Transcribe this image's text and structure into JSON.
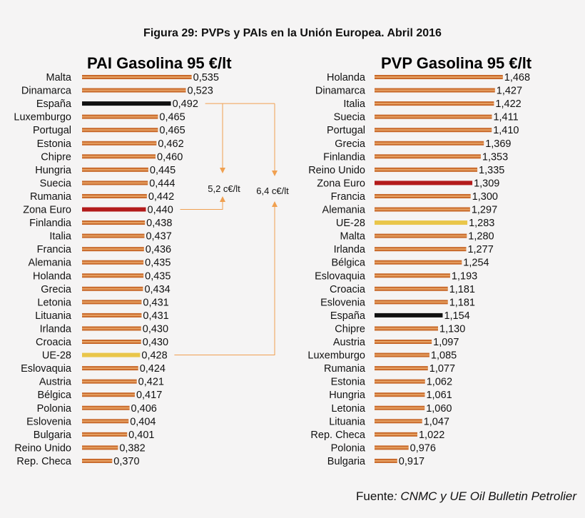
{
  "figure_title": "Figura 29: PVPs y PAIs en la Unión Europea. Abril 2016",
  "source_label": "Fuente",
  "source_text": ": CNMC y UE Oil Bulletin Petrolier",
  "colors": {
    "default_bar": "#c8692a",
    "default_bar_highlight": "#e7a264",
    "spain": "#111111",
    "eurozone": "#b31b1b",
    "eu28": "#e9c64a",
    "arrow": "#f0a050"
  },
  "annotations": [
    {
      "label": "5,2 c€/lt",
      "from": "España",
      "to": "Zona Euro",
      "chart": 0
    },
    {
      "label": "6,4 c€/lt",
      "from": "España",
      "to": "UE-28",
      "chart": 0
    }
  ],
  "chart_data": [
    {
      "type": "bar",
      "orientation": "horizontal",
      "title": "PAI Gasolina 95 €/lt",
      "categories": [
        "Malta",
        "Dinamarca",
        "España",
        "Luxemburgo",
        "Portugal",
        "Estonia",
        "Chipre",
        "Hungria",
        "Suecia",
        "Rumania",
        "Zona Euro",
        "Finlandia",
        "Italia",
        "Francia",
        "Alemania",
        "Holanda",
        "Grecia",
        "Letonia",
        "Lituania",
        "Irlanda",
        "Croacia",
        "UE-28",
        "Eslovaquia",
        "Austria",
        "Bélgica",
        "Polonia",
        "Eslovenia",
        "Bulgaria",
        "Reino Unido",
        "Rep. Checa"
      ],
      "values": [
        0.535,
        0.523,
        0.492,
        0.465,
        0.465,
        0.462,
        0.46,
        0.445,
        0.444,
        0.442,
        0.44,
        0.438,
        0.437,
        0.436,
        0.435,
        0.435,
        0.434,
        0.431,
        0.431,
        0.43,
        0.43,
        0.428,
        0.424,
        0.421,
        0.417,
        0.406,
        0.404,
        0.401,
        0.382,
        0.37
      ],
      "labels": [
        "0,535",
        "0,523",
        "0,492",
        "0,465",
        "0,465",
        "0,462",
        "0,460",
        "0,445",
        "0,444",
        "0,442",
        "0,440",
        "0,438",
        "0,437",
        "0,436",
        "0,435",
        "0,435",
        "0,434",
        "0,431",
        "0,431",
        "0,430",
        "0,430",
        "0,428",
        "0,424",
        "0,421",
        "0,417",
        "0,406",
        "0,404",
        "0,401",
        "0,382",
        "0,370"
      ],
      "highlights": {
        "España": "spain",
        "Zona Euro": "eurozone",
        "UE-28": "eu28"
      },
      "xlim": [
        0.3,
        0.54
      ],
      "grid": false,
      "legend": "none"
    },
    {
      "type": "bar",
      "orientation": "horizontal",
      "title": "PVP Gasolina 95 €/lt",
      "categories": [
        "Holanda",
        "Dinamarca",
        "Italia",
        "Suecia",
        "Portugal",
        "Grecia",
        "Finlandia",
        "Reino Unido",
        "Zona Euro",
        "Francia",
        "Alemania",
        "UE-28",
        "Malta",
        "Irlanda",
        "Bélgica",
        "Eslovaquia",
        "Croacia",
        "Eslovenia",
        "España",
        "Chipre",
        "Austria",
        "Luxemburgo",
        "Rumania",
        "Estonia",
        "Hungria",
        "Letonia",
        "Lituania",
        "Rep. Checa",
        "Polonia",
        "Bulgaria"
      ],
      "values": [
        1.468,
        1.427,
        1.422,
        1.411,
        1.41,
        1.369,
        1.353,
        1.335,
        1.309,
        1.3,
        1.297,
        1.283,
        1.28,
        1.277,
        1.254,
        1.193,
        1.181,
        1.181,
        1.154,
        1.13,
        1.097,
        1.085,
        1.077,
        1.062,
        1.061,
        1.06,
        1.047,
        1.022,
        0.976,
        0.917
      ],
      "labels": [
        "1,468",
        "1,427",
        "1,422",
        "1,411",
        "1,410",
        "1,369",
        "1,353",
        "1,335",
        "1,309",
        "1,300",
        "1,297",
        "1,283",
        "1,280",
        "1,277",
        "1,254",
        "1,193",
        "1,181",
        "1,181",
        "1,154",
        "1,130",
        "1,097",
        "1,085",
        "1,077",
        "1,062",
        "1,061",
        "1,060",
        "1,047",
        "1,022",
        "0,976",
        "0,917"
      ],
      "highlights": {
        "España": "spain",
        "Zona Euro": "eurozone",
        "UE-28": "eu28"
      },
      "xlim": [
        0.78,
        1.48
      ],
      "grid": false,
      "legend": "none"
    }
  ]
}
